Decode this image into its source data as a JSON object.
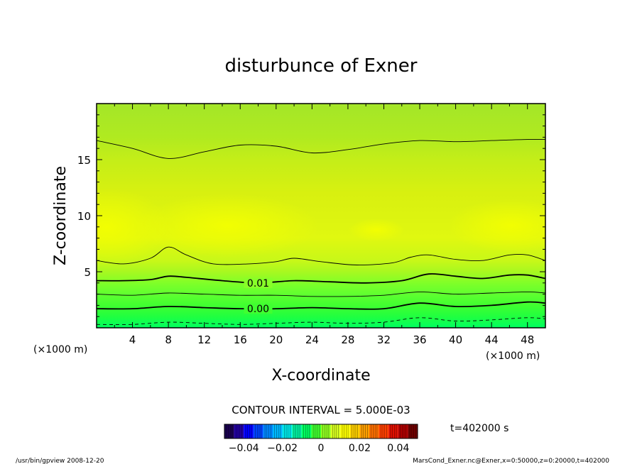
{
  "chart_data": {
    "type": "contour",
    "title": "disturbunce of Exner",
    "xlabel": "X-coordinate",
    "ylabel": "Z-coordinate",
    "x_unit": "(×1000 m)",
    "x_unit_right": "(×1000 m)",
    "xlim": [
      0,
      50
    ],
    "ylim": [
      0,
      20
    ],
    "x_ticks": [
      4,
      8,
      12,
      16,
      20,
      24,
      28,
      32,
      36,
      40,
      44,
      48
    ],
    "y_ticks": [
      5,
      10,
      15
    ],
    "contour_interval_text": "CONTOUR INTERVAL = 5.000E-03",
    "contour_interval": 0.005,
    "contours": [
      {
        "level": 0.005,
        "style": "thin",
        "label": "",
        "points": [
          [
            0,
            16.7
          ],
          [
            4,
            16.0
          ],
          [
            8,
            15.1
          ],
          [
            12,
            15.7
          ],
          [
            16,
            16.3
          ],
          [
            20,
            16.2
          ],
          [
            24,
            15.6
          ],
          [
            28,
            15.9
          ],
          [
            32,
            16.4
          ],
          [
            36,
            16.7
          ],
          [
            40,
            16.6
          ],
          [
            44,
            16.7
          ],
          [
            48,
            16.8
          ],
          [
            50,
            16.8
          ]
        ]
      },
      {
        "level": 0.005,
        "style": "thin",
        "label": "",
        "points": [
          [
            0,
            6.0
          ],
          [
            3,
            5.7
          ],
          [
            6,
            6.2
          ],
          [
            8,
            7.2
          ],
          [
            10,
            6.5
          ],
          [
            13,
            5.7
          ],
          [
            17,
            5.7
          ],
          [
            20,
            5.9
          ],
          [
            22,
            6.2
          ],
          [
            25,
            5.9
          ],
          [
            29,
            5.6
          ],
          [
            33,
            5.8
          ],
          [
            35,
            6.3
          ],
          [
            37,
            6.5
          ],
          [
            40,
            6.1
          ],
          [
            43,
            6.0
          ],
          [
            46,
            6.5
          ],
          [
            48,
            6.5
          ],
          [
            50,
            6.0
          ]
        ]
      },
      {
        "level": 0.01,
        "style": "thick",
        "label": "0.01",
        "points": [
          [
            0,
            4.2
          ],
          [
            3,
            4.2
          ],
          [
            6,
            4.3
          ],
          [
            8,
            4.6
          ],
          [
            10,
            4.5
          ],
          [
            14,
            4.2
          ],
          [
            18,
            4.0
          ],
          [
            22,
            4.2
          ],
          [
            26,
            4.1
          ],
          [
            30,
            4.0
          ],
          [
            34,
            4.2
          ],
          [
            37,
            4.8
          ],
          [
            40,
            4.6
          ],
          [
            43,
            4.4
          ],
          [
            46,
            4.7
          ],
          [
            48,
            4.7
          ],
          [
            50,
            4.4
          ]
        ]
      },
      {
        "level": 0.005,
        "style": "thin",
        "label": "",
        "points": [
          [
            0,
            3.0
          ],
          [
            4,
            2.9
          ],
          [
            8,
            3.1
          ],
          [
            12,
            3.0
          ],
          [
            16,
            2.9
          ],
          [
            20,
            2.9
          ],
          [
            24,
            2.8
          ],
          [
            28,
            2.8
          ],
          [
            32,
            2.9
          ],
          [
            36,
            3.2
          ],
          [
            40,
            3.0
          ],
          [
            44,
            3.1
          ],
          [
            48,
            3.2
          ],
          [
            50,
            3.1
          ]
        ]
      },
      {
        "level": 0.0,
        "style": "thick",
        "label": "0.00",
        "points": [
          [
            0,
            1.7
          ],
          [
            4,
            1.7
          ],
          [
            8,
            1.9
          ],
          [
            12,
            1.8
          ],
          [
            16,
            1.7
          ],
          [
            20,
            1.7
          ],
          [
            24,
            1.8
          ],
          [
            28,
            1.7
          ],
          [
            32,
            1.7
          ],
          [
            36,
            2.2
          ],
          [
            40,
            1.9
          ],
          [
            44,
            2.0
          ],
          [
            48,
            2.3
          ],
          [
            50,
            2.2
          ]
        ]
      },
      {
        "level": -0.005,
        "style": "dashed",
        "label": "",
        "points": [
          [
            0,
            0.3
          ],
          [
            4,
            0.3
          ],
          [
            8,
            0.5
          ],
          [
            12,
            0.4
          ],
          [
            16,
            0.3
          ],
          [
            20,
            0.4
          ],
          [
            24,
            0.5
          ],
          [
            28,
            0.4
          ],
          [
            32,
            0.5
          ],
          [
            36,
            0.9
          ],
          [
            40,
            0.6
          ],
          [
            44,
            0.7
          ],
          [
            48,
            0.9
          ],
          [
            50,
            0.8
          ]
        ]
      }
    ],
    "colorbar": {
      "range": [
        -0.05,
        0.05
      ],
      "tick_values": [
        -0.04,
        -0.02,
        0,
        0.02,
        0.04
      ],
      "tick_labels": [
        "−0.04",
        "−0.02",
        "0",
        "0.02",
        "0.04"
      ],
      "colors": [
        "#1a0050",
        "#2200a0",
        "#0000ff",
        "#0044ff",
        "#0088ff",
        "#00b8ff",
        "#00e8e8",
        "#00f0a0",
        "#00ff60",
        "#40ff30",
        "#90ff20",
        "#d8ff20",
        "#ffff00",
        "#ffd000",
        "#ffa000",
        "#ff7000",
        "#ff4000",
        "#e01000",
        "#b00000",
        "#700000"
      ]
    },
    "fill_bands": [
      {
        "z": 0.0,
        "color": "#00ff60"
      },
      {
        "z": 1.0,
        "color": "#20ff40"
      },
      {
        "z": 2.0,
        "color": "#40ff30"
      },
      {
        "z": 3.0,
        "color": "#60ff30"
      },
      {
        "z": 4.0,
        "color": "#80ff28"
      },
      {
        "z": 5.0,
        "color": "#a8f820"
      },
      {
        "z": 6.0,
        "color": "#c8f818"
      },
      {
        "z": 8.0,
        "color": "#e0f810"
      },
      {
        "z": 12.0,
        "color": "#d8f010"
      },
      {
        "z": 15.0,
        "color": "#c4ee18"
      },
      {
        "z": 17.0,
        "color": "#b0ea20"
      },
      {
        "z": 20.0,
        "color": "#a4e628"
      }
    ]
  },
  "time_label": "t=402000 s",
  "footer_left": "/usr/bin/gpview   2008-12-20",
  "footer_right": "MarsCond_Exner.nc@Exner,x=0:50000,z=0:20000,t=402000"
}
